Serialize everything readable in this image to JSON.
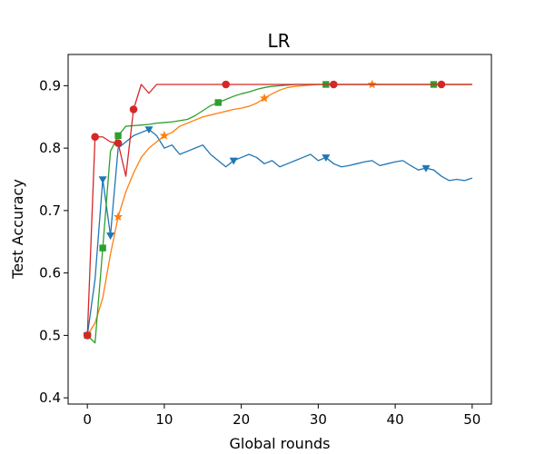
{
  "chart_data": {
    "type": "line",
    "title": "LR",
    "xlabel": "Global rounds",
    "ylabel": "Test Accuracy",
    "xlim": [
      -2.5,
      52.5
    ],
    "ylim": [
      0.39,
      0.95
    ],
    "xticks": [
      0,
      10,
      20,
      30,
      40,
      50
    ],
    "yticks": [
      0.4,
      0.5,
      0.6,
      0.7,
      0.8,
      0.9
    ],
    "grid": false,
    "legend": "none",
    "series": [
      {
        "color": "#1f77b4",
        "marker": "triangle-down",
        "marker_x": [
          0,
          2,
          3,
          8,
          19,
          31,
          44
        ],
        "points": [
          [
            0,
            0.5
          ],
          [
            1,
            0.59
          ],
          [
            2,
            0.75
          ],
          [
            3,
            0.66
          ],
          [
            4,
            0.8
          ],
          [
            5,
            0.81
          ],
          [
            6,
            0.82
          ],
          [
            7,
            0.825
          ],
          [
            8,
            0.83
          ],
          [
            9,
            0.82
          ],
          [
            10,
            0.8
          ],
          [
            11,
            0.805
          ],
          [
            12,
            0.79
          ],
          [
            13,
            0.795
          ],
          [
            14,
            0.8
          ],
          [
            15,
            0.805
          ],
          [
            16,
            0.79
          ],
          [
            17,
            0.78
          ],
          [
            18,
            0.77
          ],
          [
            19,
            0.78
          ],
          [
            20,
            0.785
          ],
          [
            21,
            0.79
          ],
          [
            22,
            0.785
          ],
          [
            23,
            0.775
          ],
          [
            24,
            0.78
          ],
          [
            25,
            0.77
          ],
          [
            26,
            0.775
          ],
          [
            27,
            0.78
          ],
          [
            28,
            0.785
          ],
          [
            29,
            0.79
          ],
          [
            30,
            0.78
          ],
          [
            31,
            0.785
          ],
          [
            32,
            0.775
          ],
          [
            33,
            0.77
          ],
          [
            34,
            0.772
          ],
          [
            35,
            0.775
          ],
          [
            36,
            0.778
          ],
          [
            37,
            0.78
          ],
          [
            38,
            0.772
          ],
          [
            39,
            0.775
          ],
          [
            40,
            0.778
          ],
          [
            41,
            0.78
          ],
          [
            42,
            0.772
          ],
          [
            43,
            0.765
          ],
          [
            44,
            0.768
          ],
          [
            45,
            0.765
          ],
          [
            46,
            0.755
          ],
          [
            47,
            0.748
          ],
          [
            48,
            0.75
          ],
          [
            49,
            0.748
          ],
          [
            50,
            0.752
          ]
        ]
      },
      {
        "color": "#ff7f0e",
        "marker": "star",
        "marker_x": [
          0,
          4,
          10,
          23,
          37
        ],
        "points": [
          [
            0,
            0.5
          ],
          [
            1,
            0.52
          ],
          [
            2,
            0.56
          ],
          [
            3,
            0.63
          ],
          [
            4,
            0.69
          ],
          [
            5,
            0.73
          ],
          [
            6,
            0.76
          ],
          [
            7,
            0.785
          ],
          [
            8,
            0.8
          ],
          [
            9,
            0.81
          ],
          [
            10,
            0.82
          ],
          [
            11,
            0.825
          ],
          [
            12,
            0.835
          ],
          [
            13,
            0.84
          ],
          [
            14,
            0.845
          ],
          [
            15,
            0.85
          ],
          [
            16,
            0.853
          ],
          [
            17,
            0.856
          ],
          [
            18,
            0.859
          ],
          [
            19,
            0.862
          ],
          [
            20,
            0.864
          ],
          [
            21,
            0.867
          ],
          [
            22,
            0.872
          ],
          [
            23,
            0.88
          ],
          [
            24,
            0.887
          ],
          [
            25,
            0.893
          ],
          [
            26,
            0.897
          ],
          [
            27,
            0.899
          ],
          [
            28,
            0.9
          ],
          [
            29,
            0.901
          ],
          [
            30,
            0.902
          ],
          [
            31,
            0.902
          ],
          [
            32,
            0.902
          ],
          [
            33,
            0.902
          ],
          [
            34,
            0.902
          ],
          [
            35,
            0.902
          ],
          [
            36,
            0.902
          ],
          [
            37,
            0.902
          ],
          [
            38,
            0.902
          ],
          [
            39,
            0.902
          ],
          [
            40,
            0.902
          ],
          [
            41,
            0.902
          ],
          [
            42,
            0.902
          ],
          [
            43,
            0.902
          ],
          [
            44,
            0.902
          ],
          [
            45,
            0.902
          ],
          [
            46,
            0.902
          ],
          [
            47,
            0.902
          ],
          [
            48,
            0.902
          ],
          [
            49,
            0.902
          ],
          [
            50,
            0.902
          ]
        ]
      },
      {
        "color": "#2ca02c",
        "marker": "square",
        "marker_x": [
          0,
          2,
          4,
          17,
          31,
          45
        ],
        "points": [
          [
            0,
            0.5
          ],
          [
            1,
            0.488
          ],
          [
            2,
            0.64
          ],
          [
            3,
            0.795
          ],
          [
            4,
            0.82
          ],
          [
            5,
            0.835
          ],
          [
            6,
            0.836
          ],
          [
            7,
            0.837
          ],
          [
            8,
            0.838
          ],
          [
            9,
            0.84
          ],
          [
            10,
            0.841
          ],
          [
            11,
            0.842
          ],
          [
            12,
            0.844
          ],
          [
            13,
            0.846
          ],
          [
            14,
            0.852
          ],
          [
            15,
            0.86
          ],
          [
            16,
            0.868
          ],
          [
            17,
            0.873
          ],
          [
            18,
            0.878
          ],
          [
            19,
            0.883
          ],
          [
            20,
            0.887
          ],
          [
            21,
            0.89
          ],
          [
            22,
            0.894
          ],
          [
            23,
            0.897
          ],
          [
            24,
            0.899
          ],
          [
            25,
            0.9
          ],
          [
            26,
            0.901
          ],
          [
            27,
            0.902
          ],
          [
            28,
            0.902
          ],
          [
            29,
            0.902
          ],
          [
            30,
            0.902
          ],
          [
            31,
            0.902
          ],
          [
            32,
            0.902
          ],
          [
            33,
            0.902
          ],
          [
            34,
            0.902
          ],
          [
            35,
            0.902
          ],
          [
            36,
            0.902
          ],
          [
            37,
            0.902
          ],
          [
            38,
            0.902
          ],
          [
            39,
            0.902
          ],
          [
            40,
            0.902
          ],
          [
            41,
            0.902
          ],
          [
            42,
            0.902
          ],
          [
            43,
            0.902
          ],
          [
            44,
            0.902
          ],
          [
            45,
            0.902
          ],
          [
            46,
            0.902
          ],
          [
            47,
            0.902
          ],
          [
            48,
            0.902
          ],
          [
            49,
            0.902
          ],
          [
            50,
            0.902
          ]
        ]
      },
      {
        "color": "#d62728",
        "marker": "circle",
        "marker_x": [
          0,
          1,
          4,
          6,
          18,
          32,
          46
        ],
        "points": [
          [
            0,
            0.5
          ],
          [
            1,
            0.818
          ],
          [
            2,
            0.818
          ],
          [
            3,
            0.81
          ],
          [
            4,
            0.808
          ],
          [
            5,
            0.755
          ],
          [
            6,
            0.862
          ],
          [
            7,
            0.902
          ],
          [
            8,
            0.888
          ],
          [
            9,
            0.902
          ],
          [
            10,
            0.902
          ],
          [
            11,
            0.902
          ],
          [
            12,
            0.902
          ],
          [
            13,
            0.902
          ],
          [
            14,
            0.902
          ],
          [
            15,
            0.902
          ],
          [
            16,
            0.902
          ],
          [
            17,
            0.902
          ],
          [
            18,
            0.902
          ],
          [
            19,
            0.902
          ],
          [
            20,
            0.902
          ],
          [
            21,
            0.902
          ],
          [
            22,
            0.902
          ],
          [
            23,
            0.902
          ],
          [
            24,
            0.902
          ],
          [
            25,
            0.902
          ],
          [
            26,
            0.902
          ],
          [
            27,
            0.902
          ],
          [
            28,
            0.902
          ],
          [
            29,
            0.902
          ],
          [
            30,
            0.902
          ],
          [
            31,
            0.902
          ],
          [
            32,
            0.902
          ],
          [
            33,
            0.902
          ],
          [
            34,
            0.902
          ],
          [
            35,
            0.902
          ],
          [
            36,
            0.902
          ],
          [
            37,
            0.902
          ],
          [
            38,
            0.902
          ],
          [
            39,
            0.902
          ],
          [
            40,
            0.902
          ],
          [
            41,
            0.902
          ],
          [
            42,
            0.902
          ],
          [
            43,
            0.902
          ],
          [
            44,
            0.902
          ],
          [
            45,
            0.902
          ],
          [
            46,
            0.902
          ],
          [
            47,
            0.902
          ],
          [
            48,
            0.902
          ],
          [
            49,
            0.902
          ],
          [
            50,
            0.902
          ]
        ]
      }
    ]
  }
}
